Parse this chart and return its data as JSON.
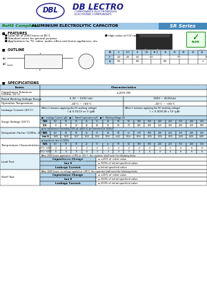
{
  "bg_color": "#FFFFFF",
  "blue_dark": "#1a1a8c",
  "rohs_green": "#007700",
  "header_bg": "#a0c8e8",
  "table_header_color": "#b8d8ee",
  "table_alt_color": "#e0f0f8",
  "surge_wv": [
    "6.3",
    "10",
    "16",
    "25",
    "35",
    "40",
    "50",
    "63",
    "100",
    "160",
    "200",
    "250",
    "350",
    "400",
    "450"
  ],
  "surge_sv": [
    "8",
    "13",
    "20",
    "32",
    "44",
    "52",
    "63",
    "79",
    "125",
    "200",
    "250",
    "300",
    "400",
    "450",
    "500"
  ],
  "df_wv": [
    "6.3",
    "10",
    "16",
    "25",
    "35",
    "40",
    "50",
    "63",
    "100",
    "160",
    "200",
    "250",
    "350",
    "400",
    "450"
  ],
  "df_tand": [
    "0.25",
    "0.20",
    "0.17",
    "0.13",
    "0.12",
    "0.12",
    "0.12",
    "0.10",
    "0.10",
    "0.15",
    "0.15",
    "0.15",
    "0.20",
    "0.20",
    "0.20"
  ],
  "temp_wv": [
    "6.3",
    "10",
    "16",
    "25",
    "35",
    "40",
    "50",
    "63",
    "100",
    "160",
    "200",
    "250",
    "350",
    "400",
    "450"
  ],
  "temp_low": [
    "4",
    "4",
    "3",
    "2",
    "2",
    "2",
    "2",
    "2",
    "2",
    "3",
    "3",
    "3",
    "4",
    "6",
    "6"
  ],
  "temp_high": [
    "6",
    "6",
    "6",
    "6",
    "3",
    "3",
    "3",
    "3",
    "3",
    "4",
    "4",
    "6",
    "6",
    "6",
    "6"
  ],
  "load_cap_change": "≤ ±20% of initial value",
  "load_tan": "≤ 150% of initial specified value",
  "load_leakage": "≤ Initial specified value",
  "shelf_cap_change": "≤ ±20% of initial value",
  "shelf_tan": "≤ 150% of initial specified value",
  "shelf_leakage": "≤ 200% of initial specified value"
}
